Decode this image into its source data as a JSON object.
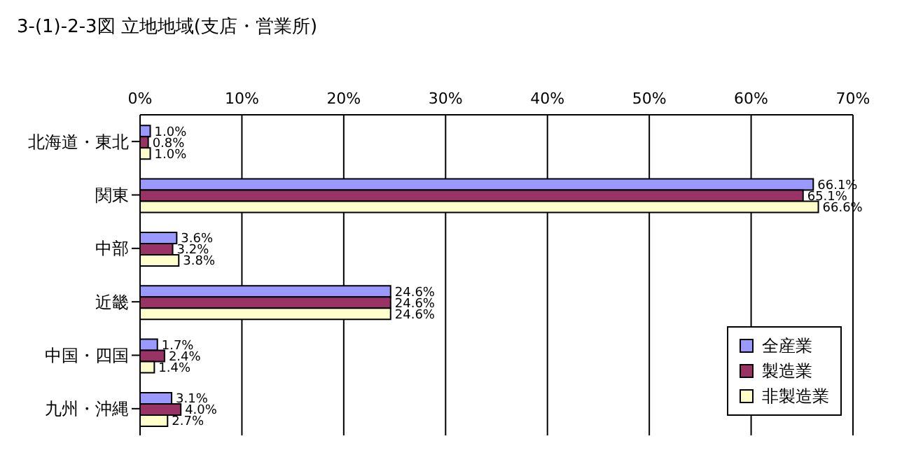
{
  "chart_data": {
    "type": "bar",
    "orientation": "horizontal",
    "title": "3-(1)-2-3図  立地地域(支店・営業所)",
    "categories": [
      "北海道・東北",
      "関東",
      "中部",
      "近畿",
      "中国・四国",
      "九州・沖縄"
    ],
    "series": [
      {
        "name": "全産業",
        "color": "#9999ff",
        "values": [
          1.0,
          66.1,
          3.6,
          24.6,
          1.7,
          3.1
        ],
        "value_labels": [
          "1.0%",
          "66.1%",
          "3.6%",
          "24.6%",
          "1.7%",
          "3.1%"
        ]
      },
      {
        "name": "製造業",
        "color": "#993366",
        "values": [
          0.8,
          65.1,
          3.2,
          24.6,
          2.4,
          4.0
        ],
        "value_labels": [
          "0.8%",
          "65.1%",
          "3.2%",
          "24.6%",
          "2.4%",
          "4.0%"
        ]
      },
      {
        "name": "非製造業",
        "color": "#ffffcc",
        "values": [
          1.0,
          66.6,
          3.8,
          24.6,
          1.4,
          2.7
        ],
        "value_labels": [
          "1.0%",
          "66.6%",
          "3.8%",
          "24.6%",
          "1.4%",
          "2.7%"
        ]
      }
    ],
    "xlim": [
      0,
      70
    ],
    "xticks": [
      {
        "value": 0,
        "label": "0%"
      },
      {
        "value": 10,
        "label": "10%"
      },
      {
        "value": 20,
        "label": "20%"
      },
      {
        "value": 30,
        "label": "30%"
      },
      {
        "value": 40,
        "label": "40%"
      },
      {
        "value": 50,
        "label": "50%"
      },
      {
        "value": 60,
        "label": "60%"
      },
      {
        "value": 70,
        "label": "70%"
      }
    ],
    "grid": "x",
    "legend": "bottom right"
  }
}
